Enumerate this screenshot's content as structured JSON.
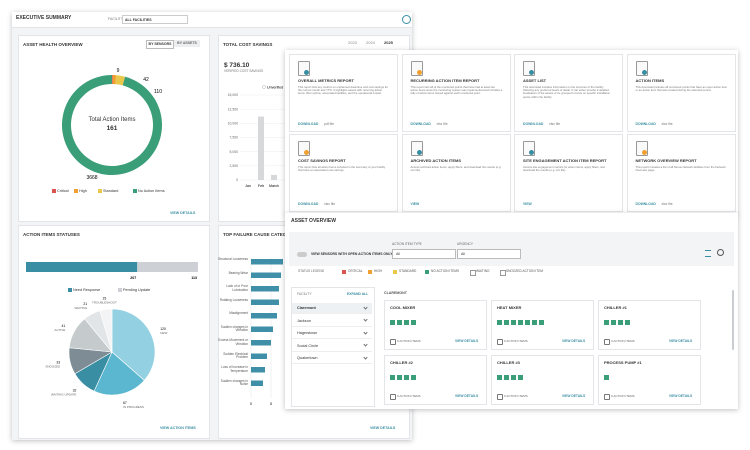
{
  "header": {
    "title": "EXECUTIVE SUMMARY",
    "facility_label": "FACILITY",
    "facility_value": "ALL FACILITIES"
  },
  "asset_health": {
    "title": "ASSET HEALTH OVERVIEW",
    "toggles": [
      "BY SENSORS",
      "BY ASSETS"
    ],
    "center_label": "Total Action Items",
    "center_value": 161,
    "segments": [
      {
        "name": "Critical",
        "color": "#d9534f",
        "value": 9
      },
      {
        "name": "High",
        "color": "#f0a030",
        "value": 42
      },
      {
        "name": "Standard",
        "color": "#e9c84c",
        "value": 110
      },
      {
        "name": "No Action Items",
        "color": "#3a9e78",
        "value": 3668
      }
    ],
    "link": "VIEW DETAILS"
  },
  "cost_savings": {
    "title": "TOTAL COST SAVINGS",
    "years": [
      "2023",
      "2024",
      "2025"
    ],
    "amount": "$ 736.10",
    "amount_label": "VERIFIED COST SAVINGS",
    "chart": {
      "type": "bar",
      "categories": [
        "Jan",
        "Feb",
        "March"
      ],
      "series": [
        {
          "name": "Unverified",
          "color": "#d6d8da",
          "values": [
            0,
            11200,
            900
          ]
        }
      ],
      "ylim": [
        0,
        15000
      ],
      "yticks": [
        0,
        {
          "value": 2500,
          "label": "2,500"
        },
        {
          "value": 5000,
          "label": "5,000"
        },
        {
          "value": 7500,
          "label": "7,500"
        },
        {
          "value": 10000,
          "label": "10,000"
        },
        {
          "value": 12500,
          "label": "12,500"
        },
        {
          "value": 15000,
          "label": "15,000"
        }
      ],
      "grid": true
    }
  },
  "action_statuses": {
    "title": "ACTION ITEMS STATUSES",
    "bar": {
      "segments": [
        {
          "name": "Need Response",
          "color": "#3a8ea3",
          "value": 207
        },
        {
          "name": "Pending Update",
          "color": "#cdd1d5",
          "value": 113
        }
      ]
    },
    "pie": {
      "type": "pie",
      "slices": [
        {
          "name": "NEW",
          "value": 120,
          "color": "#93d1e2"
        },
        {
          "name": "IN PROGRESS",
          "value": 67,
          "color": "#5bb7cf"
        },
        {
          "name": "WAITING UPDATE",
          "value": 32,
          "color": "#3a8ea3"
        },
        {
          "name": "SNOOZED",
          "value": 33,
          "color": "#7d8c95"
        },
        {
          "name": "ACTIVE",
          "value": 41,
          "color": "#c5cacd"
        },
        {
          "name": "WAITING",
          "value": 21,
          "color": "#e2e5e7"
        },
        {
          "name": "TROUBLESHOOT",
          "value": 15,
          "color": "#f3f4f5"
        }
      ]
    },
    "link": "VIEW ACTION ITEMS"
  },
  "failure_causes": {
    "title": "TOP FAILURE CAUSE CATEGORIES",
    "chart": {
      "type": "bar",
      "orientation": "horizontal",
      "categories": [
        "Structural Looseness",
        "Bearing Wear",
        "Lack of or Poor Lubrication",
        "Rotating Looseness",
        "Misalignment",
        "Sudden changes in Vibration",
        "Excess Movement or Vibration",
        "Sudden Electrical Problem",
        "Loss of Increase in Temperature",
        "Sudden changes in Noise"
      ],
      "values": [
        8,
        7.5,
        7,
        7,
        6.5,
        5.5,
        5,
        4,
        3.5,
        3
      ],
      "color": "#3f8fa8",
      "xlim": [
        0,
        10
      ],
      "xticks": [
        0,
        5
      ]
    },
    "link": "VIEW DETAILS"
  },
  "reports": {
    "cards": [
      {
        "title": "OVERALL METRICS REPORT",
        "description": "This report lists key metrics on unplanned downtime and cost savings for the current month and YTD. It highlights assets with recurring action items, fiber uptime, associated facilities, and the operational impact.",
        "action": "DOWNLOAD",
        "format": "pdf file"
      },
      {
        "title": "RECURRING ACTION ITEM REPORT",
        "description": "This report lists all of the monitored points that have had at least two action items since the monitoring system was implemented and includes a tally of action items issued against each monitored point.",
        "action": "DOWNLOAD",
        "format": "xlsx file"
      },
      {
        "title": "ASSET LIST",
        "description": "This download includes information on the structure of the facility, following any preferred levels of detail. It can either provide a detailed breakdown of the assets or be grouped to focus on specific installation points within the facility.",
        "action": "DOWNLOAD",
        "format": "xlsx file"
      },
      {
        "title": "ACTION ITEMS",
        "description": "This download includes all monitored points that have an open action item or an action item that was created during the selected period.",
        "action": "DOWNLOAD",
        "format": "xlsx file"
      },
      {
        "title": "COST SAVINGS REPORT",
        "description": "This report lists all action items included in the summary of your facility that have an associated cost savings.",
        "action": "DOWNLOAD",
        "format": "xlsx file"
      },
      {
        "title": "ARCHIVED ACTION ITEMS",
        "description": "Access archived action items, apply filters, and download the results (e.g. csv file).",
        "action": "VIEW",
        "format": ""
      },
      {
        "title": "SITE ENGAGEMENT ACTION ITEM REPORT",
        "description": "Access site engagement metrics for action items, apply filters, and download the results (e.g. csv file).",
        "action": "VIEW",
        "format": ""
      },
      {
        "title": "NETWORK OVERVIEW REPORT",
        "description": "This report includes a list of all Nexus Network facilities from the Network Overview page.",
        "action": "DOWNLOAD",
        "format": "xlsx file"
      }
    ]
  },
  "asset_overview": {
    "title": "ASSET OVERVIEW",
    "toggle_label": "VIEW SENSORS WITH OPEN ACTION ITEMS ONLY",
    "filters": [
      {
        "label": "ACTION ITEM TYPE",
        "value": "All"
      },
      {
        "label": "URGENCY",
        "value": "All"
      }
    ],
    "legend_title": "STATUS LEGEND",
    "legend": [
      {
        "name": "CRITICAL",
        "color": "#d9534f"
      },
      {
        "name": "HIGH",
        "color": "#f0a030"
      },
      {
        "name": "STANDARD",
        "color": "#e9c84c"
      },
      {
        "name": "NO ACTION ITEMS",
        "color": "#3a9e78"
      },
      {
        "name": "WAITING",
        "color": "#ffffff"
      },
      {
        "name": "SNOOZED ACTION ITEM",
        "color": "#ffffff"
      }
    ],
    "facility_label": "FACILITY",
    "expand": "EXPAND ALL",
    "facilities": [
      "Claremont",
      "Jackson",
      "Hagerstown",
      "Social Circle",
      "Quakertown"
    ],
    "selected": "CLAREMONT",
    "assets": [
      {
        "name": "COOL MIXER",
        "sensors": 4,
        "action_items": "0 ACTION ITEMS",
        "link": "VIEW DETAILS"
      },
      {
        "name": "HEAT MIXER",
        "sensors": 7,
        "action_items": "0 ACTION ITEMS",
        "link": "VIEW DETAILS"
      },
      {
        "name": "CHILLER #1",
        "sensors": 4,
        "action_items": "0 ACTION ITEMS",
        "link": "VIEW DETAILS"
      },
      {
        "name": "CHILLER #2",
        "sensors": 4,
        "action_items": "0 ACTION ITEMS",
        "link": "VIEW DETAILS"
      },
      {
        "name": "CHILLER #3",
        "sensors": 4,
        "action_items": "0 ACTION ITEMS",
        "link": "VIEW DETAILS"
      },
      {
        "name": "PROCESS PUMP #1",
        "sensors": 1,
        "action_items": "0 ACTION ITEMS",
        "link": "VIEW DETAILS"
      }
    ]
  }
}
